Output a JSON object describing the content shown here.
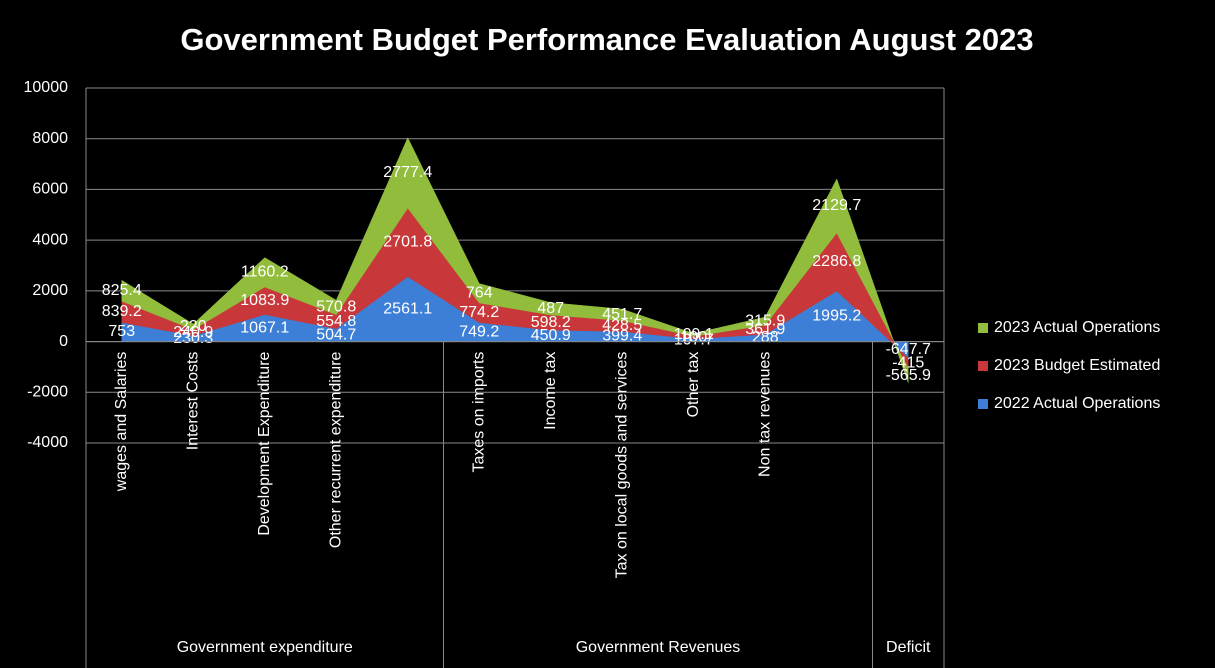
{
  "chart_data": {
    "type": "stacked-area",
    "title": "Government Budget Performance Evaluation August 2023",
    "categories": [
      "wages and Salaries",
      "Interest Costs",
      "Development Expenditure",
      "Other recurrent expenditure",
      null,
      "Taxes on imports",
      "Income tax",
      "Tax on local goods and services",
      "Other tax",
      "Non tax revenues",
      null,
      null
    ],
    "groups": [
      {
        "name": "Government expenditure",
        "size": 5
      },
      {
        "name": "Government Revenues",
        "size": 6
      },
      {
        "name": "Deficit",
        "size": 1
      }
    ],
    "series": [
      {
        "name": "2022 Actual Operations",
        "color": "#3d7fd6",
        "values": [
          753,
          230.3,
          1067.1,
          504.7,
          2561.1,
          749.2,
          450.9,
          399.4,
          107.7,
          288,
          1995.2,
          -647.7
        ]
      },
      {
        "name": "2023 Budget Estimated",
        "color": "#c8383a",
        "values": [
          839.2,
          240.9,
          1083.9,
          554.8,
          2701.8,
          774.2,
          598.2,
          428.5,
          100,
          361.9,
          2286.8,
          -415
        ]
      },
      {
        "name": "2023 Actual Operations",
        "color": "#92bd3c",
        "values": [
          825.4,
          220,
          1160.2,
          570.8,
          2777.4,
          764,
          487,
          451.7,
          109.1,
          315.9,
          2129.7,
          -565.9
        ]
      }
    ],
    "ylim": [
      -4000,
      10000
    ],
    "yticks": [
      -4000,
      -2000,
      0,
      2000,
      4000,
      6000,
      8000,
      10000
    ],
    "grid": true,
    "legend": "right"
  }
}
